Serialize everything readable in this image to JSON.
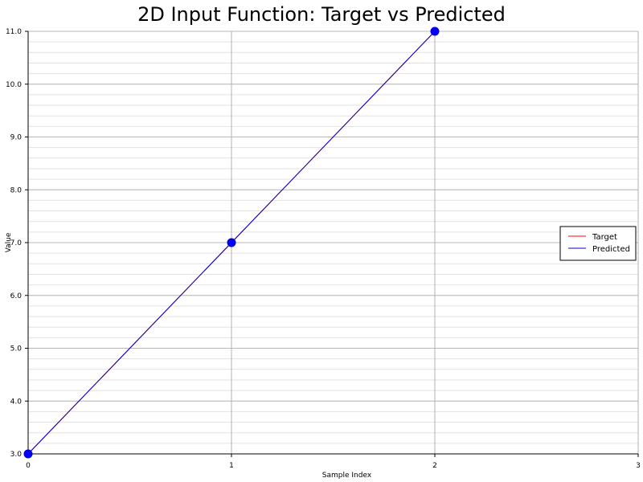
{
  "chart_data": {
    "type": "line",
    "title": "2D Input Function: Target vs Predicted",
    "xlabel": "Sample Index",
    "ylabel": "Value",
    "x": [
      0,
      1,
      2
    ],
    "xlim": [
      0,
      3
    ],
    "ylim": [
      3.0,
      11.0
    ],
    "xticks": [
      "0",
      "1",
      "2",
      "3"
    ],
    "yticks": [
      "3.0",
      "4.0",
      "5.0",
      "6.0",
      "7.0",
      "8.0",
      "9.0",
      "10.0",
      "11.0"
    ],
    "series": [
      {
        "name": "Target",
        "values": [
          3.0,
          7.0,
          11.0
        ],
        "color": "#ff0000"
      },
      {
        "name": "Predicted",
        "values": [
          3.0,
          7.0,
          11.0
        ],
        "color": "#0000cc",
        "marker_color": "#0000ff"
      }
    ],
    "grid": true,
    "legend_position": "right"
  }
}
